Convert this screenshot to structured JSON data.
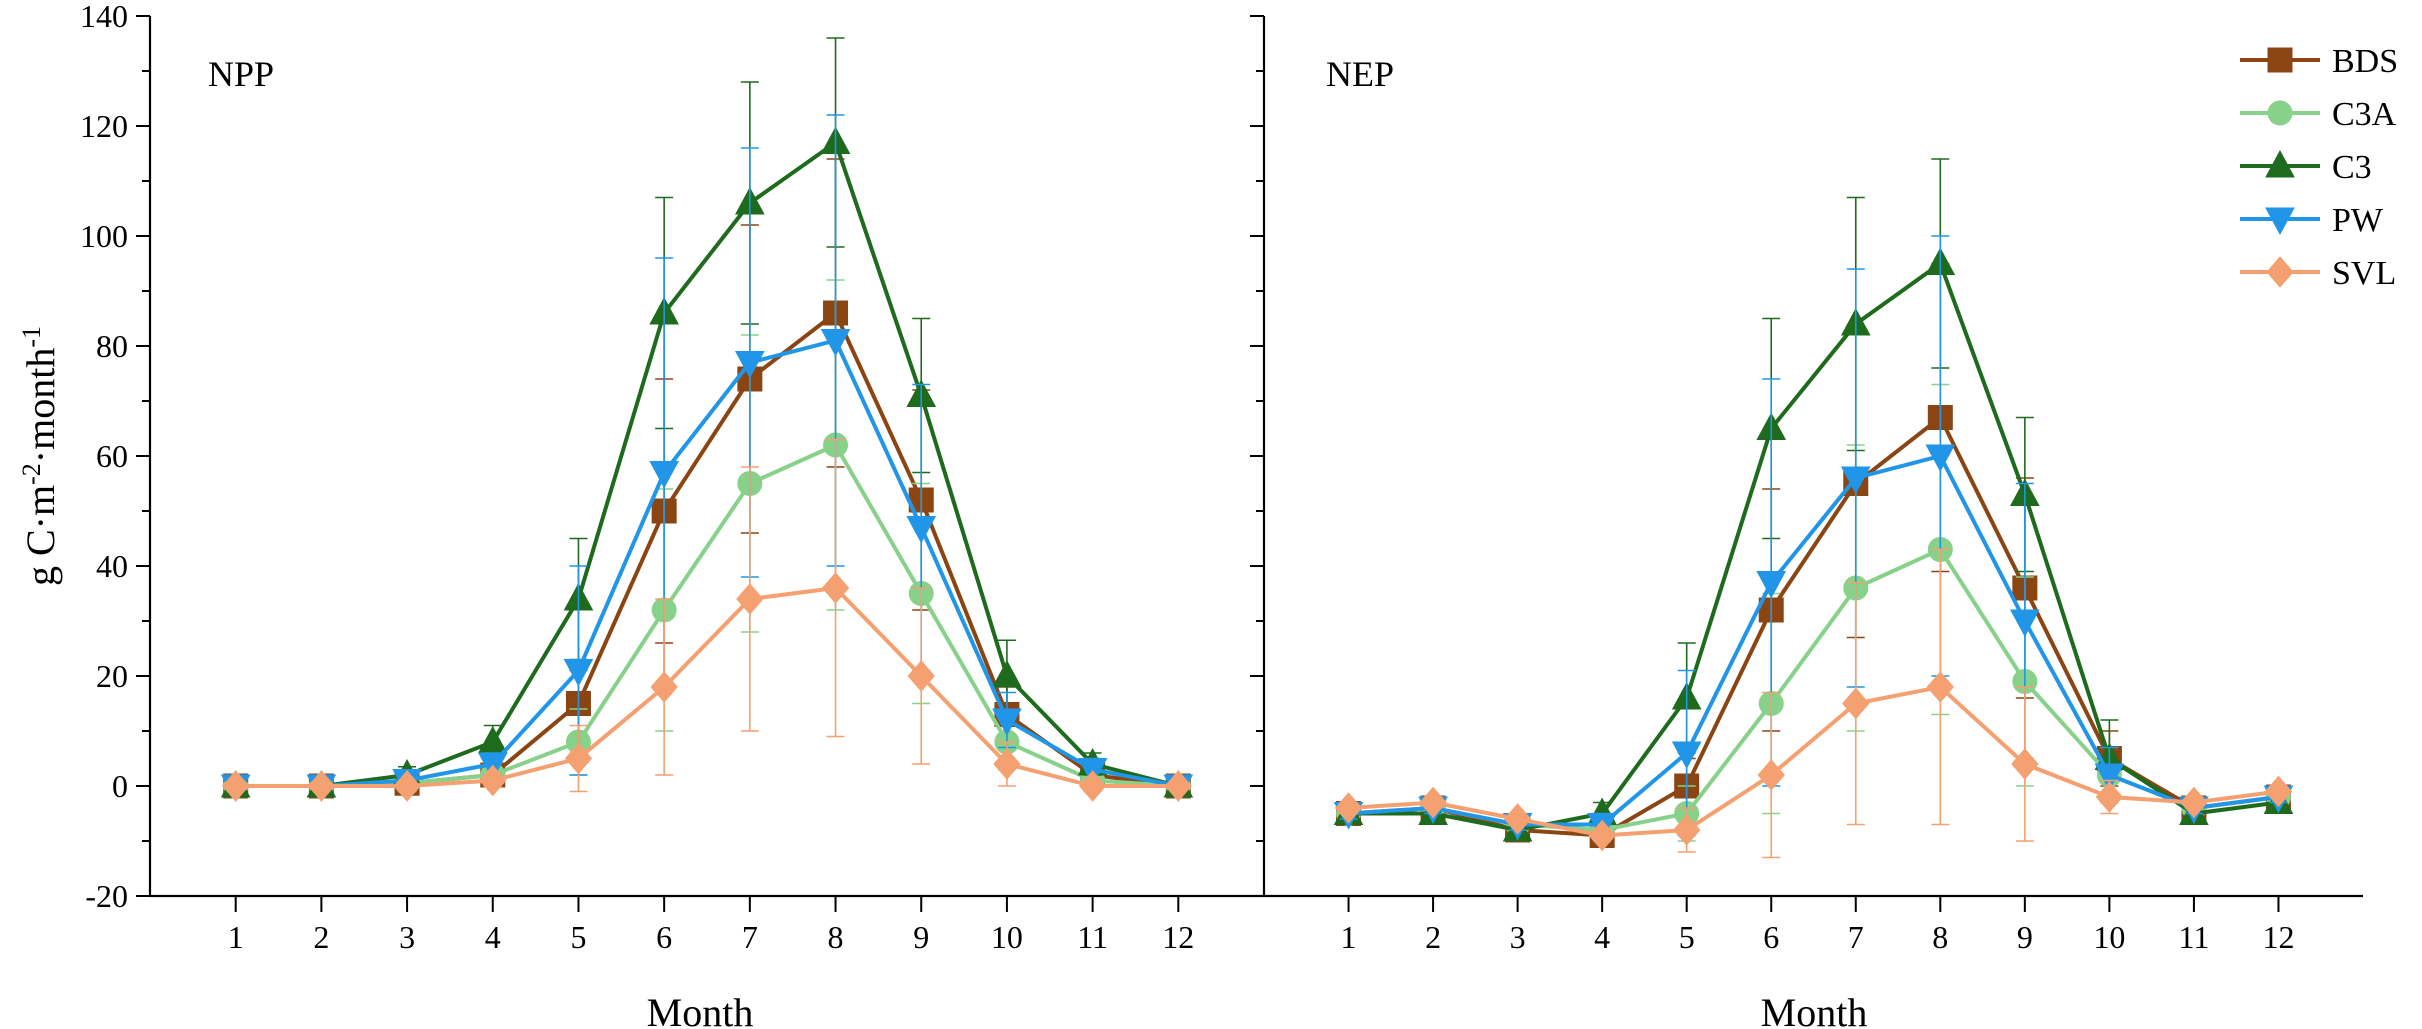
{
  "chart_data": [
    {
      "type": "line",
      "panel": "left",
      "title": "NPP",
      "xlabel": "Month",
      "ylabel": "g C·m-2·month-1",
      "ylabel_parts": {
        "base": "g C·m",
        "exp1": "-2",
        "mid": "·month",
        "exp2": "-1"
      },
      "ylim": [
        -20,
        140
      ],
      "yticks": [
        -20,
        0,
        20,
        40,
        60,
        80,
        100,
        120,
        140
      ],
      "xlim": [
        0,
        13
      ],
      "x": [
        1,
        2,
        3,
        4,
        5,
        6,
        7,
        8,
        9,
        10,
        11,
        12
      ],
      "series": [
        {
          "name": "BDS",
          "color": "#8B4513",
          "marker": "square",
          "values": [
            0,
            0,
            0.5,
            2,
            15,
            50,
            74,
            86,
            52,
            13,
            2,
            0
          ],
          "errors": [
            0.5,
            0.5,
            1,
            2,
            6,
            24,
            28,
            28,
            20,
            5,
            2,
            0.5
          ]
        },
        {
          "name": "C3A",
          "color": "#88D18A",
          "marker": "circle",
          "values": [
            0,
            0,
            0.5,
            2,
            8,
            32,
            55,
            62,
            35,
            8,
            1,
            0
          ],
          "errors": [
            0.5,
            0.5,
            1,
            2,
            6,
            22,
            27,
            30,
            20,
            5,
            1.5,
            0.5
          ]
        },
        {
          "name": "C3",
          "color": "#1E6B1E",
          "marker": "triangle-up",
          "values": [
            0,
            0,
            2,
            8,
            34,
            86,
            106,
            117,
            71,
            20,
            4,
            0
          ],
          "errors": [
            0.5,
            0.5,
            1.5,
            3,
            11,
            21,
            22,
            19,
            14,
            6.5,
            2,
            0.5
          ]
        },
        {
          "name": "PW",
          "color": "#2196E8",
          "marker": "triangle-down",
          "values": [
            0,
            0,
            1,
            4,
            21,
            57,
            77,
            81,
            47,
            12,
            3,
            0
          ],
          "errors": [
            0.5,
            0.5,
            1,
            2,
            19,
            39,
            39,
            41,
            26,
            5,
            2,
            0.5
          ]
        },
        {
          "name": "SVL",
          "color": "#F4A071",
          "marker": "diamond",
          "values": [
            0,
            0,
            0,
            1,
            5,
            18,
            34,
            36,
            20,
            4,
            0,
            0
          ],
          "errors": [
            0.5,
            0.5,
            0.5,
            1,
            6,
            16,
            24,
            27,
            16,
            4,
            1,
            0.5
          ]
        }
      ]
    },
    {
      "type": "line",
      "panel": "right",
      "title": "NEP",
      "xlabel": "Month",
      "ylim": [
        -20,
        140
      ],
      "xlim": [
        0,
        13
      ],
      "x": [
        1,
        2,
        3,
        4,
        5,
        6,
        7,
        8,
        9,
        10,
        11,
        12
      ],
      "series": [
        {
          "name": "BDS",
          "color": "#8B4513",
          "marker": "square",
          "values": [
            -5,
            -4,
            -8,
            -9,
            0,
            32,
            55,
            67,
            36,
            5,
            -4,
            -2
          ],
          "errors": [
            1,
            1,
            1,
            1,
            5,
            22,
            28,
            28,
            20,
            5,
            1,
            1
          ]
        },
        {
          "name": "C3A",
          "color": "#88D18A",
          "marker": "circle",
          "values": [
            -5,
            -4,
            -7,
            -8,
            -5,
            15,
            36,
            43,
            19,
            2,
            -4,
            -2
          ],
          "errors": [
            1,
            1,
            1,
            1,
            5,
            20,
            26,
            30,
            19,
            5,
            1,
            1
          ]
        },
        {
          "name": "C3",
          "color": "#1E6B1E",
          "marker": "triangle-up",
          "values": [
            -5,
            -5,
            -8,
            -5,
            16,
            65,
            84,
            95,
            53,
            5,
            -5,
            -3
          ],
          "errors": [
            1,
            1,
            1,
            2,
            10,
            20,
            23,
            19,
            14,
            7,
            1,
            1
          ]
        },
        {
          "name": "PW",
          "color": "#2196E8",
          "marker": "triangle-down",
          "values": [
            -5,
            -4,
            -7,
            -7,
            6,
            37,
            56,
            60,
            30,
            2,
            -4,
            -2
          ],
          "errors": [
            1,
            1,
            1,
            2,
            15,
            37,
            38,
            40,
            25,
            5,
            1,
            1
          ]
        },
        {
          "name": "SVL",
          "color": "#F4A071",
          "marker": "diamond",
          "values": [
            -4,
            -3,
            -6,
            -9,
            -8,
            2,
            15,
            18,
            4,
            -2,
            -3,
            -1
          ],
          "errors": [
            1,
            1,
            1,
            1,
            4,
            15,
            22,
            25,
            14,
            3,
            1,
            1
          ]
        }
      ]
    }
  ],
  "legend": {
    "position": "top-right",
    "entries": [
      "BDS",
      "C3A",
      "C3",
      "PW",
      "SVL"
    ]
  }
}
